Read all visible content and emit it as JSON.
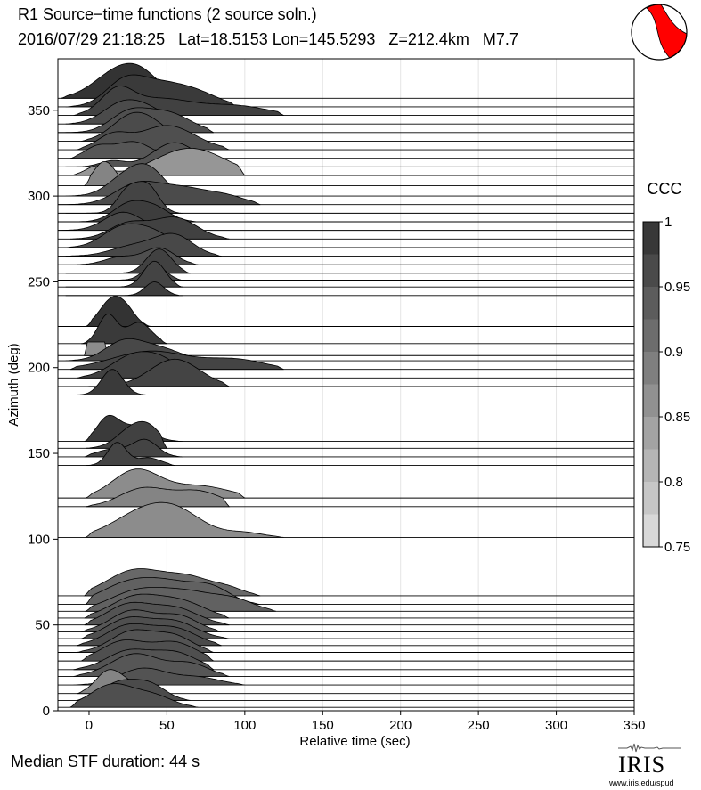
{
  "header": {
    "title": "R1 Source−time functions (2 source soln.)",
    "subtitle": "2016/07/29 21:18:25   Lat=18.5153 Lon=145.5293   Z=212.4km   M7.7"
  },
  "footer": {
    "median": "Median STF duration: 44 s"
  },
  "logo": {
    "name": "IRIS",
    "url": "www.iris.edu/spud"
  },
  "colorbar": {
    "label": "CCC",
    "min": 0.75,
    "max": 1,
    "ticks": [
      0.75,
      0.8,
      0.85,
      0.9,
      0.95,
      1
    ],
    "tick_labels": [
      "0.75",
      "0.8",
      "0.85",
      "0.9",
      "0.95",
      "1"
    ]
  },
  "beachball": {
    "compression_color": "#ff0000"
  },
  "chart_data": {
    "type": "area",
    "xlabel": "Relative time (sec)",
    "ylabel": "Azimuth (deg)",
    "xlim": [
      -20,
      350
    ],
    "ylim": [
      0,
      380
    ],
    "xticks": [
      0,
      50,
      100,
      150,
      200,
      250,
      300,
      350
    ],
    "yticks": [
      0,
      50,
      100,
      150,
      200,
      250,
      300,
      350
    ],
    "grid": "vertical",
    "traces": [
      {
        "az": 357,
        "ccc": 0.995,
        "start": -18,
        "end": 60,
        "peaks": [
          [
            18,
            15,
            0.85
          ],
          [
            35,
            12,
            0.55
          ]
        ]
      },
      {
        "az": 352,
        "ccc": 0.985,
        "start": -15,
        "end": 95,
        "peaks": [
          [
            22,
            12,
            0.65
          ],
          [
            45,
            18,
            0.75
          ],
          [
            72,
            14,
            0.3
          ]
        ]
      },
      {
        "az": 347,
        "ccc": 0.975,
        "start": -10,
        "end": 125,
        "peaks": [
          [
            18,
            10,
            0.7
          ],
          [
            45,
            22,
            0.55
          ],
          [
            95,
            20,
            0.3
          ]
        ]
      },
      {
        "az": 342,
        "ccc": 0.96,
        "start": -15,
        "end": 70,
        "peaks": [
          [
            20,
            12,
            0.6
          ],
          [
            38,
            12,
            0.45
          ]
        ]
      },
      {
        "az": 337,
        "ccc": 0.955,
        "start": -20,
        "end": 80,
        "peaks": [
          [
            25,
            12,
            0.6
          ],
          [
            50,
            15,
            0.65
          ]
        ]
      },
      {
        "az": 332,
        "ccc": 0.96,
        "start": -5,
        "end": 70,
        "peaks": [
          [
            25,
            12,
            0.65
          ],
          [
            40,
            12,
            0.5
          ]
        ]
      },
      {
        "az": 327,
        "ccc": 0.955,
        "start": -8,
        "end": 90,
        "peaks": [
          [
            15,
            10,
            0.45
          ],
          [
            50,
            18,
            0.8
          ]
        ]
      },
      {
        "az": 322,
        "ccc": 0.945,
        "start": -12,
        "end": 65,
        "peaks": [
          [
            5,
            8,
            0.35
          ],
          [
            28,
            12,
            0.55
          ]
        ]
      },
      {
        "az": 317,
        "ccc": 0.95,
        "start": -20,
        "end": 80,
        "peaks": [
          [
            15,
            8,
            0.2
          ],
          [
            55,
            14,
            0.8
          ]
        ]
      },
      {
        "az": 312,
        "ccc": 0.855,
        "start": -12,
        "end": 100,
        "peaks": [
          [
            5,
            7,
            0.3
          ],
          [
            65,
            22,
            0.9
          ]
        ]
      },
      {
        "az": 306,
        "ccc": 0.88,
        "start": -3,
        "end": 40,
        "peaks": [
          [
            10,
            7,
            0.8
          ]
        ]
      },
      {
        "az": 300,
        "ccc": 0.95,
        "start": -15,
        "end": 70,
        "peaks": [
          [
            25,
            12,
            0.7
          ],
          [
            40,
            10,
            0.65
          ]
        ]
      },
      {
        "az": 295,
        "ccc": 0.96,
        "start": -20,
        "end": 110,
        "peaks": [
          [
            30,
            14,
            0.6
          ],
          [
            60,
            18,
            0.55
          ],
          [
            90,
            12,
            0.2
          ]
        ]
      },
      {
        "az": 290,
        "ccc": 0.97,
        "start": -15,
        "end": 60,
        "peaks": [
          [
            25,
            7,
            0.75
          ],
          [
            38,
            7,
            0.85
          ]
        ]
      },
      {
        "az": 285,
        "ccc": 0.98,
        "start": -15,
        "end": 70,
        "peaks": [
          [
            25,
            10,
            0.55
          ],
          [
            42,
            10,
            0.45
          ]
        ]
      },
      {
        "az": 280,
        "ccc": 0.965,
        "start": -20,
        "end": 55,
        "peaks": [
          [
            22,
            12,
            0.6
          ]
        ]
      },
      {
        "az": 275,
        "ccc": 0.975,
        "start": -12,
        "end": 90,
        "peaks": [
          [
            25,
            12,
            0.5
          ],
          [
            55,
            14,
            0.7
          ]
        ]
      },
      {
        "az": 270,
        "ccc": 0.96,
        "start": -15,
        "end": 65,
        "peaks": [
          [
            20,
            12,
            0.6
          ],
          [
            40,
            12,
            0.5
          ]
        ]
      },
      {
        "az": 265,
        "ccc": 0.965,
        "start": -15,
        "end": 85,
        "peaks": [
          [
            30,
            15,
            0.35
          ],
          [
            55,
            12,
            0.65
          ]
        ]
      },
      {
        "az": 260,
        "ccc": 0.955,
        "start": -8,
        "end": 70,
        "peaks": [
          [
            20,
            10,
            0.25
          ],
          [
            45,
            10,
            0.55
          ]
        ]
      },
      {
        "az": 255,
        "ccc": 0.975,
        "start": -15,
        "end": 65,
        "peaks": [
          [
            45,
            8,
            0.8
          ]
        ]
      },
      {
        "az": 251,
        "ccc": 0.965,
        "start": -12,
        "end": 60,
        "peaks": [
          [
            42,
            7,
            0.5
          ]
        ]
      },
      {
        "az": 247,
        "ccc": 0.97,
        "start": -15,
        "end": 60,
        "peaks": [
          [
            42,
            7,
            0.85
          ]
        ]
      },
      {
        "az": 242,
        "ccc": 0.98,
        "start": -15,
        "end": 60,
        "peaks": [
          [
            42,
            6,
            0.45
          ]
        ]
      },
      {
        "az": 224,
        "ccc": 0.995,
        "start": -2,
        "end": 40,
        "peaks": [
          [
            15,
            8,
            0.9
          ],
          [
            25,
            6,
            0.3
          ]
        ]
      },
      {
        "az": 214,
        "ccc": 0.985,
        "start": -5,
        "end": 50,
        "peaks": [
          [
            12,
            6,
            0.95
          ],
          [
            32,
            8,
            0.7
          ]
        ]
      },
      {
        "az": 207,
        "ccc": 0.87,
        "start": -3,
        "end": 12,
        "peaks": [
          [
            4,
            4,
            0.45
          ]
        ],
        "flat": true
      },
      {
        "az": 204,
        "ccc": 0.965,
        "start": -15,
        "end": 75,
        "peaks": [
          [
            22,
            12,
            0.6
          ],
          [
            45,
            14,
            0.4
          ]
        ]
      },
      {
        "az": 199,
        "ccc": 0.97,
        "start": -12,
        "end": 125,
        "peaks": [
          [
            40,
            25,
            0.6
          ],
          [
            95,
            18,
            0.3
          ]
        ]
      },
      {
        "az": 194,
        "ccc": 0.975,
        "start": -8,
        "end": 80,
        "peaks": [
          [
            28,
            14,
            0.7
          ],
          [
            48,
            12,
            0.45
          ]
        ]
      },
      {
        "az": 189,
        "ccc": 0.97,
        "start": -18,
        "end": 90,
        "peaks": [
          [
            55,
            16,
            0.9
          ]
        ]
      },
      {
        "az": 184,
        "ccc": 0.985,
        "start": -12,
        "end": 60,
        "peaks": [
          [
            15,
            7,
            0.85
          ]
        ]
      },
      {
        "az": 157,
        "ccc": 0.985,
        "start": -3,
        "end": 60,
        "peaks": [
          [
            12,
            7,
            0.75
          ],
          [
            30,
            10,
            0.5
          ]
        ]
      },
      {
        "az": 153,
        "ccc": 0.975,
        "start": -2,
        "end": 50,
        "peaks": [
          [
            28,
            10,
            0.65
          ],
          [
            40,
            8,
            0.45
          ]
        ]
      },
      {
        "az": 148,
        "ccc": 0.97,
        "start": -3,
        "end": 60,
        "peaks": [
          [
            15,
            10,
            0.25
          ],
          [
            36,
            8,
            0.55
          ]
        ]
      },
      {
        "az": 143,
        "ccc": 0.97,
        "start": -2,
        "end": 55,
        "peaks": [
          [
            18,
            6,
            0.75
          ],
          [
            38,
            8,
            0.25
          ]
        ]
      },
      {
        "az": 124,
        "ccc": 0.87,
        "start": -2,
        "end": 100,
        "peaks": [
          [
            30,
            15,
            0.9
          ],
          [
            70,
            20,
            0.4
          ]
        ]
      },
      {
        "az": 119,
        "ccc": 0.88,
        "start": -2,
        "end": 90,
        "peaks": [
          [
            35,
            15,
            0.6
          ],
          [
            70,
            15,
            0.5
          ]
        ]
      },
      {
        "az": 101,
        "ccc": 0.87,
        "start": -2,
        "end": 125,
        "peaks": [
          [
            30,
            18,
            0.6
          ],
          [
            55,
            18,
            0.85
          ],
          [
            100,
            12,
            0.15
          ]
        ]
      },
      {
        "az": 67,
        "ccc": 0.92,
        "start": -3,
        "end": 110,
        "peaks": [
          [
            30,
            18,
            0.85
          ],
          [
            65,
            15,
            0.55
          ],
          [
            90,
            10,
            0.2
          ]
        ]
      },
      {
        "az": 62,
        "ccc": 0.93,
        "start": -2,
        "end": 110,
        "peaks": [
          [
            25,
            18,
            0.65
          ],
          [
            55,
            18,
            0.6
          ],
          [
            80,
            12,
            0.4
          ]
        ]
      },
      {
        "az": 58,
        "ccc": 0.93,
        "start": -2,
        "end": 120,
        "peaks": [
          [
            30,
            18,
            0.6
          ],
          [
            65,
            20,
            0.6
          ],
          [
            95,
            12,
            0.25
          ]
        ]
      },
      {
        "az": 54,
        "ccc": 0.94,
        "start": -3,
        "end": 90,
        "peaks": [
          [
            30,
            16,
            0.7
          ],
          [
            60,
            15,
            0.5
          ]
        ]
      },
      {
        "az": 50,
        "ccc": 0.95,
        "start": -3,
        "end": 90,
        "peaks": [
          [
            25,
            14,
            0.65
          ],
          [
            55,
            15,
            0.55
          ]
        ]
      },
      {
        "az": 46,
        "ccc": 0.945,
        "start": -5,
        "end": 85,
        "peaks": [
          [
            28,
            14,
            0.7
          ],
          [
            58,
            12,
            0.5
          ]
        ]
      },
      {
        "az": 42,
        "ccc": 0.955,
        "start": -5,
        "end": 90,
        "peaks": [
          [
            25,
            14,
            0.65
          ],
          [
            55,
            14,
            0.55
          ]
        ]
      },
      {
        "az": 38,
        "ccc": 0.96,
        "start": -8,
        "end": 85,
        "peaks": [
          [
            25,
            14,
            0.65
          ],
          [
            55,
            14,
            0.55
          ]
        ]
      },
      {
        "az": 34,
        "ccc": 0.95,
        "start": -8,
        "end": 80,
        "peaks": [
          [
            28,
            14,
            0.7
          ],
          [
            55,
            12,
            0.5
          ]
        ]
      },
      {
        "az": 29,
        "ccc": 0.955,
        "start": -5,
        "end": 80,
        "peaks": [
          [
            22,
            14,
            0.65
          ],
          [
            55,
            14,
            0.6
          ]
        ]
      },
      {
        "az": 24,
        "ccc": 0.95,
        "start": -10,
        "end": 80,
        "peaks": [
          [
            25,
            14,
            0.6
          ],
          [
            55,
            14,
            0.55
          ]
        ]
      },
      {
        "az": 20,
        "ccc": 0.945,
        "start": -10,
        "end": 90,
        "peaks": [
          [
            30,
            16,
            0.75
          ],
          [
            65,
            12,
            0.4
          ]
        ]
      },
      {
        "az": 15,
        "ccc": 0.95,
        "start": -10,
        "end": 100,
        "peaks": [
          [
            35,
            15,
            0.55
          ],
          [
            70,
            14,
            0.25
          ]
        ]
      },
      {
        "az": 10,
        "ccc": 0.88,
        "start": -8,
        "end": 50,
        "peaks": [
          [
            12,
            8,
            0.7
          ],
          [
            25,
            8,
            0.3
          ]
        ]
      },
      {
        "az": 6,
        "ccc": 0.96,
        "start": -8,
        "end": 65,
        "peaks": [
          [
            20,
            12,
            0.6
          ],
          [
            40,
            10,
            0.45
          ]
        ]
      },
      {
        "az": 2,
        "ccc": 0.955,
        "start": -12,
        "end": 70,
        "peaks": [
          [
            15,
            14,
            0.75
          ],
          [
            42,
            12,
            0.35
          ]
        ]
      }
    ]
  }
}
